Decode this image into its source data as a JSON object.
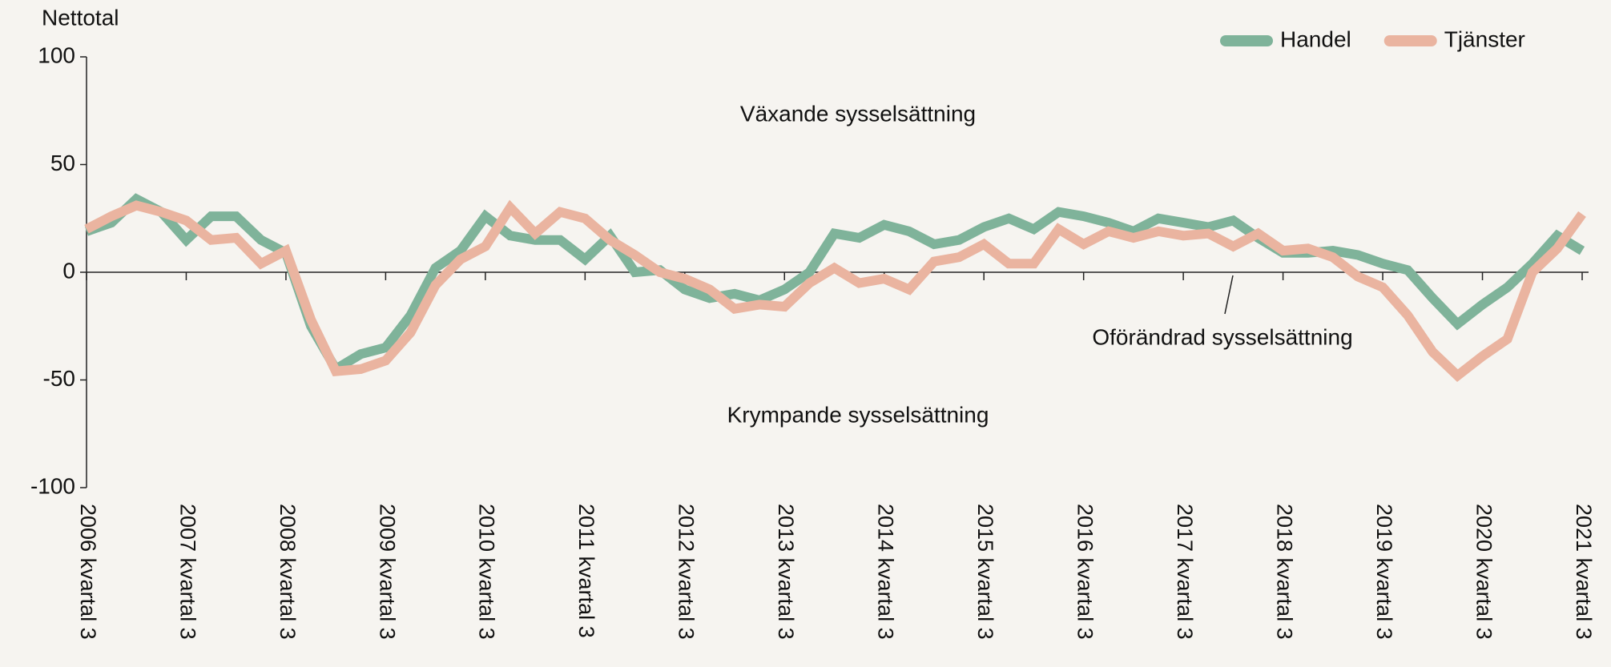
{
  "chart_data": {
    "type": "line",
    "y_label": "Nettotal",
    "categories": [
      "2006 kvartal 3",
      null,
      null,
      null,
      "2007 kvartal 3",
      null,
      null,
      null,
      "2008 kvartal 3",
      null,
      null,
      null,
      "2009 kvartal 3",
      null,
      null,
      null,
      "2010 kvartal 3",
      null,
      null,
      null,
      "2011 kvartal 3",
      null,
      null,
      null,
      "2012 kvartal 3",
      null,
      null,
      null,
      "2013 kvartal 3",
      null,
      null,
      null,
      "2014 kvartal 3",
      null,
      null,
      null,
      "2015 kvartal 3",
      null,
      null,
      null,
      "2016 kvartal 3",
      null,
      null,
      null,
      "2017 kvartal 3",
      null,
      null,
      null,
      "2018 kvartal 3",
      null,
      null,
      null,
      "2019 kvartal 3",
      null,
      null,
      null,
      "2020 kvartal 3",
      null,
      null,
      null,
      "2021 kvartal 3"
    ],
    "series": [
      {
        "name": "Handel",
        "color": "#7fb39a",
        "values": [
          19,
          23,
          34,
          28,
          15,
          26,
          26,
          15,
          9,
          -25,
          -45,
          -38,
          -35,
          -20,
          2,
          10,
          26,
          17,
          15,
          15,
          6,
          17,
          0,
          1,
          -8,
          -12,
          -10,
          -13,
          -8,
          0,
          18,
          16,
          22,
          19,
          13,
          15,
          21,
          25,
          20,
          28,
          26,
          23,
          19,
          25,
          23,
          21,
          24,
          16,
          9,
          9,
          10,
          8,
          4,
          1,
          -12,
          -24,
          -15,
          -7,
          4,
          17,
          10
        ]
      },
      {
        "name": "Tjänster",
        "color": "#eab4a0",
        "values": [
          20,
          26,
          31,
          28,
          24,
          15,
          16,
          4,
          10,
          -22,
          -46,
          -45,
          -41,
          -28,
          -6,
          6,
          12,
          30,
          18,
          28,
          25,
          15,
          8,
          0,
          -3,
          -8,
          -17,
          -15,
          -16,
          -5,
          2,
          -5,
          -3,
          -8,
          5,
          7,
          13,
          4,
          4,
          20,
          13,
          19,
          16,
          19,
          17,
          18,
          12,
          18,
          10,
          11,
          7,
          -2,
          -7,
          -20,
          -37,
          -48,
          -39,
          -31,
          0,
          11,
          27
        ]
      }
    ],
    "ylim": [
      -100,
      100
    ],
    "yticks": [
      -100,
      -50,
      0,
      50,
      100
    ],
    "legend": "upper right",
    "annotations": [
      "Växande sysselsättning",
      "Krympande sysselsättning",
      "Oförändrad sysselsättning"
    ]
  }
}
